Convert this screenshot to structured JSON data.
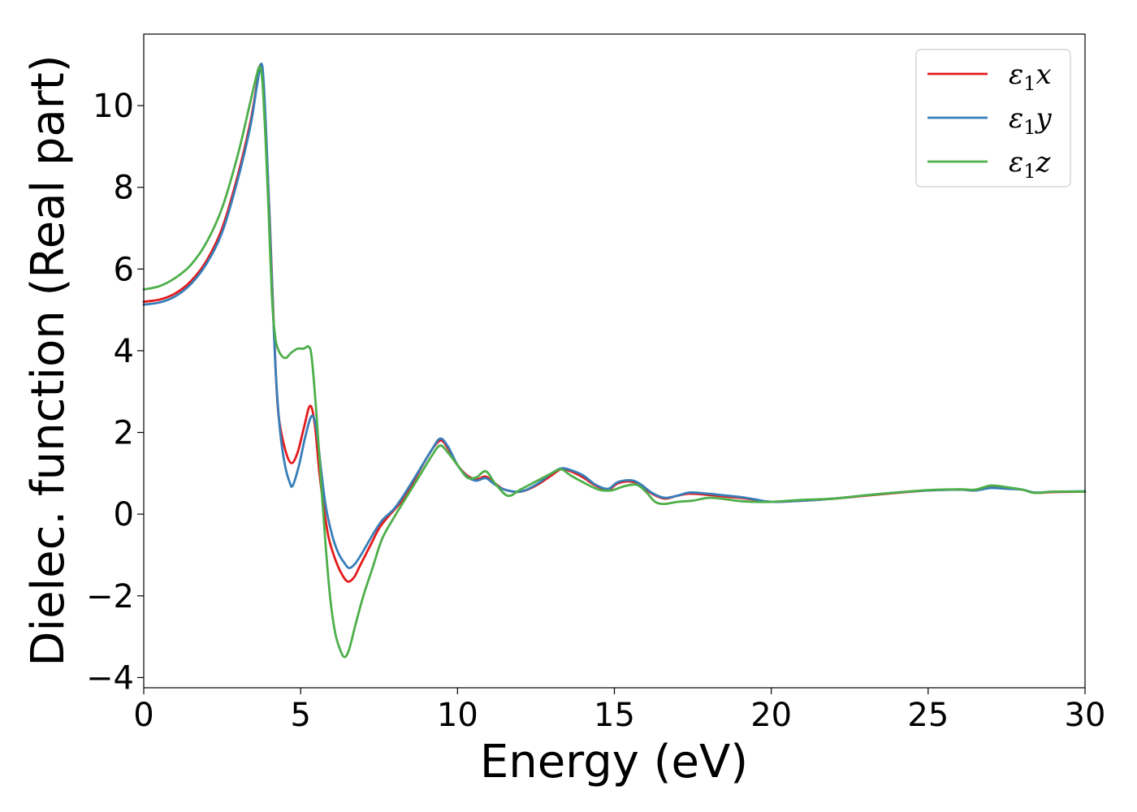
{
  "chart_data": {
    "type": "line",
    "xlabel": "Energy (eV)",
    "ylabel": "Dielec. function (Real part)",
    "xlim": [
      0,
      30
    ],
    "ylim": [
      -4.25,
      11.75
    ],
    "xticks": [
      0,
      5,
      10,
      15,
      20,
      25,
      30
    ],
    "yticks": [
      -4,
      -2,
      0,
      2,
      4,
      6,
      8,
      10
    ],
    "grid": false,
    "legend_position": "top-right",
    "series": [
      {
        "name": "ε1x",
        "legend_base": "ε",
        "legend_sub": "1",
        "legend_tail": "x",
        "color": "#e41a1c",
        "points": [
          [
            0,
            5.2
          ],
          [
            0.5,
            5.25
          ],
          [
            1.0,
            5.4
          ],
          [
            1.5,
            5.7
          ],
          [
            2.0,
            6.2
          ],
          [
            2.5,
            7.0
          ],
          [
            3.0,
            8.3
          ],
          [
            3.4,
            9.6
          ],
          [
            3.6,
            10.5
          ],
          [
            3.72,
            11.0
          ],
          [
            3.8,
            10.6
          ],
          [
            3.9,
            9.2
          ],
          [
            4.0,
            7.5
          ],
          [
            4.1,
            5.5
          ],
          [
            4.2,
            3.6
          ],
          [
            4.3,
            2.4
          ],
          [
            4.5,
            1.6
          ],
          [
            4.7,
            1.25
          ],
          [
            4.9,
            1.5
          ],
          [
            5.1,
            2.1
          ],
          [
            5.3,
            2.65
          ],
          [
            5.45,
            2.2
          ],
          [
            5.6,
            1.0
          ],
          [
            5.75,
            0.1
          ],
          [
            5.9,
            -0.6
          ],
          [
            6.1,
            -1.1
          ],
          [
            6.3,
            -1.45
          ],
          [
            6.5,
            -1.65
          ],
          [
            6.7,
            -1.55
          ],
          [
            6.9,
            -1.25
          ],
          [
            7.2,
            -0.8
          ],
          [
            7.5,
            -0.35
          ],
          [
            7.8,
            -0.05
          ],
          [
            8.2,
            0.3
          ],
          [
            8.6,
            0.8
          ],
          [
            9.0,
            1.35
          ],
          [
            9.3,
            1.7
          ],
          [
            9.5,
            1.8
          ],
          [
            9.7,
            1.6
          ],
          [
            10.0,
            1.2
          ],
          [
            10.3,
            0.95
          ],
          [
            10.6,
            0.85
          ],
          [
            10.9,
            0.92
          ],
          [
            11.2,
            0.75
          ],
          [
            11.5,
            0.6
          ],
          [
            12.0,
            0.55
          ],
          [
            12.5,
            0.7
          ],
          [
            13.0,
            0.95
          ],
          [
            13.3,
            1.1
          ],
          [
            13.6,
            1.05
          ],
          [
            14.0,
            0.9
          ],
          [
            14.4,
            0.7
          ],
          [
            14.8,
            0.6
          ],
          [
            15.1,
            0.75
          ],
          [
            15.5,
            0.8
          ],
          [
            15.8,
            0.72
          ],
          [
            16.2,
            0.5
          ],
          [
            16.6,
            0.38
          ],
          [
            17.0,
            0.45
          ],
          [
            17.4,
            0.5
          ],
          [
            18.0,
            0.47
          ],
          [
            18.5,
            0.43
          ],
          [
            19.0,
            0.4
          ],
          [
            19.5,
            0.35
          ],
          [
            20.0,
            0.3
          ],
          [
            21.0,
            0.33
          ],
          [
            22.0,
            0.38
          ],
          [
            23.0,
            0.45
          ],
          [
            24.0,
            0.52
          ],
          [
            25.0,
            0.58
          ],
          [
            26.0,
            0.6
          ],
          [
            26.5,
            0.58
          ],
          [
            27.0,
            0.66
          ],
          [
            27.5,
            0.63
          ],
          [
            28.0,
            0.6
          ],
          [
            28.4,
            0.52
          ],
          [
            29.0,
            0.54
          ],
          [
            30.0,
            0.55
          ]
        ]
      },
      {
        "name": "ε1y",
        "legend_base": "ε",
        "legend_sub": "1",
        "legend_tail": "y",
        "color": "#377eb8",
        "points": [
          [
            0,
            5.13
          ],
          [
            0.5,
            5.18
          ],
          [
            1.0,
            5.33
          ],
          [
            1.5,
            5.63
          ],
          [
            2.0,
            6.13
          ],
          [
            2.5,
            6.9
          ],
          [
            3.0,
            8.2
          ],
          [
            3.4,
            9.5
          ],
          [
            3.6,
            10.45
          ],
          [
            3.74,
            11.02
          ],
          [
            3.82,
            10.6
          ],
          [
            3.92,
            9.0
          ],
          [
            4.02,
            7.0
          ],
          [
            4.12,
            5.0
          ],
          [
            4.22,
            3.3
          ],
          [
            4.35,
            2.0
          ],
          [
            4.5,
            1.2
          ],
          [
            4.65,
            0.78
          ],
          [
            4.75,
            0.7
          ],
          [
            4.95,
            1.2
          ],
          [
            5.15,
            1.9
          ],
          [
            5.35,
            2.4
          ],
          [
            5.5,
            2.1
          ],
          [
            5.65,
            1.1
          ],
          [
            5.8,
            0.2
          ],
          [
            6.0,
            -0.5
          ],
          [
            6.2,
            -0.95
          ],
          [
            6.4,
            -1.2
          ],
          [
            6.55,
            -1.32
          ],
          [
            6.75,
            -1.2
          ],
          [
            7.0,
            -0.9
          ],
          [
            7.3,
            -0.5
          ],
          [
            7.6,
            -0.15
          ],
          [
            8.0,
            0.15
          ],
          [
            8.4,
            0.6
          ],
          [
            8.8,
            1.1
          ],
          [
            9.2,
            1.6
          ],
          [
            9.45,
            1.85
          ],
          [
            9.7,
            1.65
          ],
          [
            10.0,
            1.2
          ],
          [
            10.3,
            0.92
          ],
          [
            10.6,
            0.82
          ],
          [
            10.9,
            0.88
          ],
          [
            11.2,
            0.72
          ],
          [
            11.5,
            0.6
          ],
          [
            12.0,
            0.55
          ],
          [
            12.5,
            0.72
          ],
          [
            13.0,
            1.0
          ],
          [
            13.3,
            1.12
          ],
          [
            13.6,
            1.08
          ],
          [
            14.0,
            0.95
          ],
          [
            14.4,
            0.72
          ],
          [
            14.8,
            0.62
          ],
          [
            15.1,
            0.78
          ],
          [
            15.5,
            0.83
          ],
          [
            15.8,
            0.75
          ],
          [
            16.2,
            0.52
          ],
          [
            16.6,
            0.4
          ],
          [
            17.0,
            0.45
          ],
          [
            17.4,
            0.53
          ],
          [
            18.0,
            0.5
          ],
          [
            18.5,
            0.46
          ],
          [
            19.0,
            0.42
          ],
          [
            19.5,
            0.36
          ],
          [
            20.0,
            0.3
          ],
          [
            21.0,
            0.33
          ],
          [
            22.0,
            0.38
          ],
          [
            23.0,
            0.46
          ],
          [
            24.0,
            0.53
          ],
          [
            25.0,
            0.58
          ],
          [
            26.0,
            0.6
          ],
          [
            26.5,
            0.58
          ],
          [
            27.0,
            0.64
          ],
          [
            27.5,
            0.62
          ],
          [
            28.0,
            0.6
          ],
          [
            28.4,
            0.53
          ],
          [
            29.0,
            0.55
          ],
          [
            30.0,
            0.56
          ]
        ]
      },
      {
        "name": "ε1z",
        "legend_base": "ε",
        "legend_sub": "1",
        "legend_tail": "z",
        "color": "#4daf4a",
        "points": [
          [
            0,
            5.5
          ],
          [
            0.5,
            5.58
          ],
          [
            1.0,
            5.78
          ],
          [
            1.5,
            6.1
          ],
          [
            2.0,
            6.65
          ],
          [
            2.5,
            7.5
          ],
          [
            3.0,
            8.8
          ],
          [
            3.4,
            10.1
          ],
          [
            3.6,
            10.75
          ],
          [
            3.7,
            10.95
          ],
          [
            3.78,
            10.6
          ],
          [
            3.88,
            9.2
          ],
          [
            3.98,
            7.4
          ],
          [
            4.08,
            5.4
          ],
          [
            4.18,
            4.4
          ],
          [
            4.3,
            4.0
          ],
          [
            4.5,
            3.82
          ],
          [
            4.7,
            3.95
          ],
          [
            4.9,
            4.05
          ],
          [
            5.1,
            4.05
          ],
          [
            5.25,
            4.1
          ],
          [
            5.35,
            3.85
          ],
          [
            5.5,
            2.5
          ],
          [
            5.65,
            0.8
          ],
          [
            5.8,
            -0.8
          ],
          [
            5.95,
            -2.1
          ],
          [
            6.1,
            -2.9
          ],
          [
            6.25,
            -3.3
          ],
          [
            6.4,
            -3.5
          ],
          [
            6.55,
            -3.3
          ],
          [
            6.75,
            -2.7
          ],
          [
            7.0,
            -2.0
          ],
          [
            7.3,
            -1.3
          ],
          [
            7.6,
            -0.6
          ],
          [
            8.0,
            -0.05
          ],
          [
            8.4,
            0.45
          ],
          [
            8.8,
            0.95
          ],
          [
            9.2,
            1.45
          ],
          [
            9.45,
            1.68
          ],
          [
            9.7,
            1.5
          ],
          [
            10.0,
            1.2
          ],
          [
            10.3,
            0.9
          ],
          [
            10.6,
            0.9
          ],
          [
            10.9,
            1.05
          ],
          [
            11.2,
            0.75
          ],
          [
            11.6,
            0.45
          ],
          [
            12.0,
            0.6
          ],
          [
            12.5,
            0.8
          ],
          [
            13.0,
            1.0
          ],
          [
            13.3,
            1.1
          ],
          [
            13.6,
            0.95
          ],
          [
            14.0,
            0.78
          ],
          [
            14.5,
            0.6
          ],
          [
            14.9,
            0.58
          ],
          [
            15.3,
            0.68
          ],
          [
            15.7,
            0.72
          ],
          [
            16.0,
            0.55
          ],
          [
            16.3,
            0.3
          ],
          [
            16.6,
            0.25
          ],
          [
            17.0,
            0.3
          ],
          [
            17.5,
            0.33
          ],
          [
            18.0,
            0.4
          ],
          [
            18.5,
            0.37
          ],
          [
            19.0,
            0.32
          ],
          [
            19.5,
            0.3
          ],
          [
            20.0,
            0.3
          ],
          [
            21.0,
            0.35
          ],
          [
            22.0,
            0.38
          ],
          [
            23.0,
            0.46
          ],
          [
            24.0,
            0.53
          ],
          [
            25.0,
            0.59
          ],
          [
            26.0,
            0.61
          ],
          [
            26.5,
            0.6
          ],
          [
            27.0,
            0.7
          ],
          [
            27.5,
            0.66
          ],
          [
            28.0,
            0.6
          ],
          [
            28.4,
            0.52
          ],
          [
            29.0,
            0.55
          ],
          [
            30.0,
            0.55
          ]
        ]
      }
    ]
  }
}
